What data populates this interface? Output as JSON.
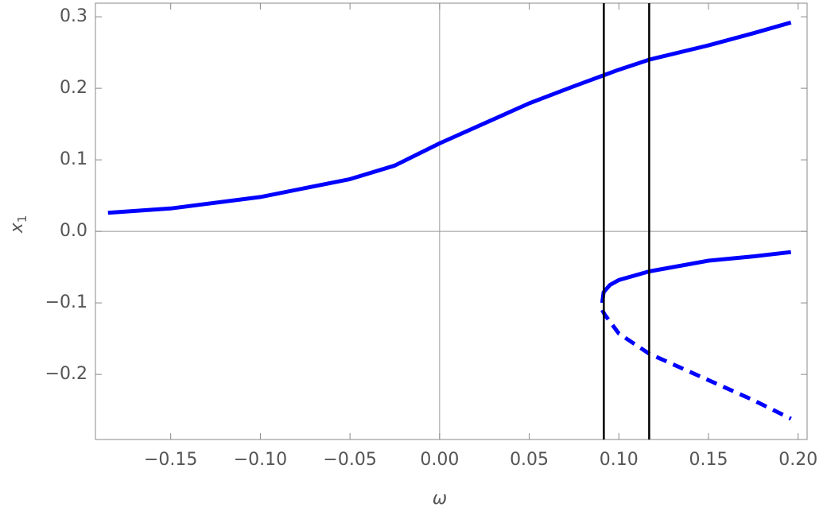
{
  "chart_data": {
    "type": "line",
    "xlabel": "ω",
    "ylabel": "x",
    "ylabel_sub": "1",
    "xlim": [
      -0.192,
      0.205
    ],
    "ylim": [
      -0.291,
      0.319
    ],
    "xticks": [
      {
        "value": -0.15,
        "label": "−0.15"
      },
      {
        "value": -0.1,
        "label": "−0.10"
      },
      {
        "value": -0.05,
        "label": "−0.05"
      },
      {
        "value": 0,
        "label": "0.00"
      },
      {
        "value": 0.05,
        "label": "0.05"
      },
      {
        "value": 0.1,
        "label": "0.10"
      },
      {
        "value": 0.15,
        "label": "0.15"
      },
      {
        "value": 0.2,
        "label": "0.20"
      }
    ],
    "yticks": [
      {
        "value": -0.2,
        "label": "−0.2"
      },
      {
        "value": -0.1,
        "label": "−0.1"
      },
      {
        "value": 0,
        "label": "0.0"
      },
      0.1,
      0.2,
      0.3
    ],
    "vlines": [
      0.0916,
      0.1169
    ],
    "vline_color": "#000000",
    "series": [
      {
        "color": "#0000ff",
        "dashed": false,
        "x": [
          -0.185,
          -0.15,
          -0.1,
          -0.05,
          -0.025,
          0,
          0.025,
          0.05,
          0.075,
          0.1,
          0.1169,
          0.15,
          0.175,
          0.196
        ],
        "values": [
          0.026,
          0.032,
          0.048,
          0.073,
          0.092,
          0.123,
          0.151,
          0.179,
          0.203,
          0.226,
          0.24,
          0.26,
          0.277,
          0.292
        ]
      },
      {
        "color": "#0000ff",
        "dashed": false,
        "x": [
          0.0907,
          0.0915,
          0.095,
          0.1,
          0.1169,
          0.15,
          0.175,
          0.196
        ],
        "values": [
          -0.1,
          -0.085,
          -0.075,
          -0.068,
          -0.056,
          -0.041,
          -0.035,
          -0.029
        ]
      },
      {
        "color": "#0000ff",
        "dashed": true,
        "x": [
          0.0907,
          0.092,
          0.1,
          0.1169,
          0.15,
          0.175,
          0.196
        ],
        "values": [
          -0.11,
          -0.116,
          -0.143,
          -0.171,
          -0.208,
          -0.236,
          -0.262
        ]
      }
    ]
  }
}
